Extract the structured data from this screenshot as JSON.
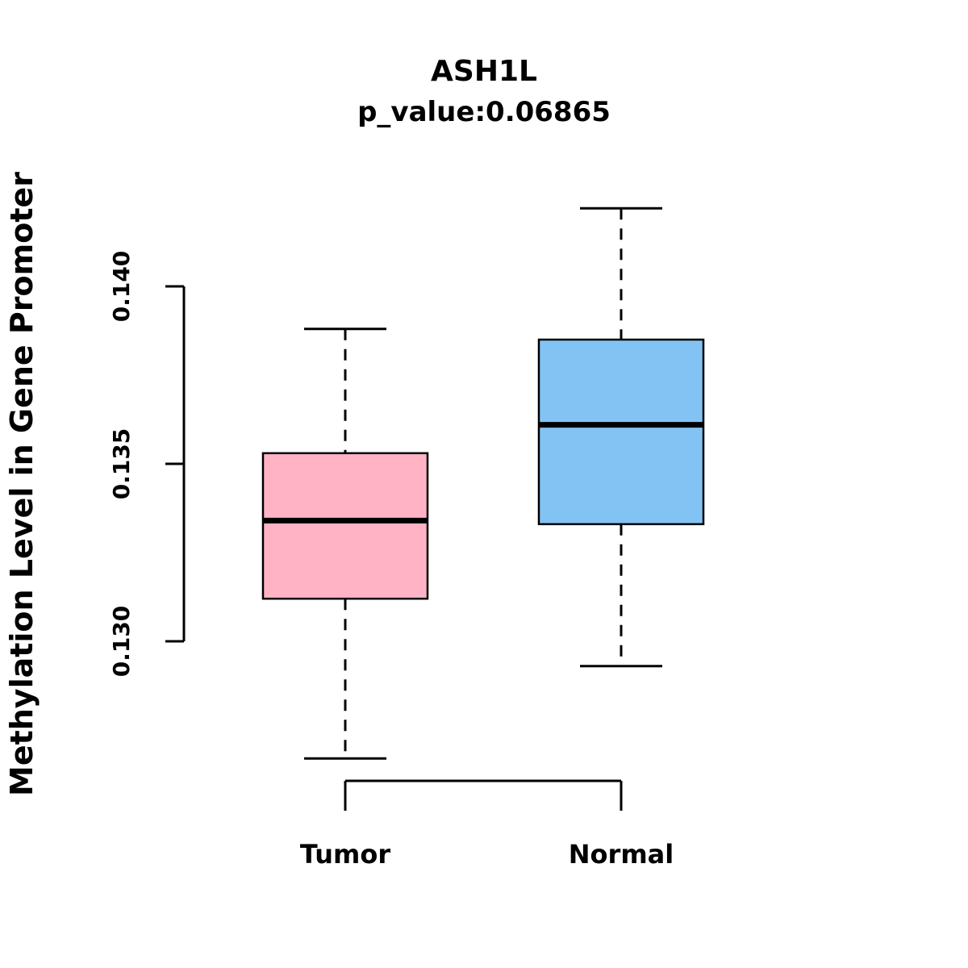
{
  "chart_data": {
    "type": "box",
    "title": "ASH1L",
    "subtitle": "p_value:0.06865",
    "ylabel": "Methylation Level in Gene Promoter",
    "categories": [
      "Tumor",
      "Normal"
    ],
    "yticks": [
      {
        "label": "0.130",
        "value": 0.13
      },
      {
        "label": "0.135",
        "value": 0.135
      },
      {
        "label": "0.140",
        "value": 0.14
      }
    ],
    "ylim": [
      0.1255,
      0.143
    ],
    "grid": false,
    "legend": "none",
    "series": [
      {
        "name": "Tumor",
        "color": "#FFB3C5",
        "whisker_low": 0.1267,
        "q1": 0.1312,
        "median": 0.1334,
        "q3": 0.1353,
        "whisker_high": 0.1388
      },
      {
        "name": "Normal",
        "color": "#83C3F4",
        "whisker_low": 0.1293,
        "q1": 0.1333,
        "median": 0.1361,
        "q3": 0.1385,
        "whisker_high": 0.1422
      }
    ],
    "colors": {
      "axis": "#000000",
      "median_line": "#000000",
      "box_border": "#000000"
    }
  }
}
